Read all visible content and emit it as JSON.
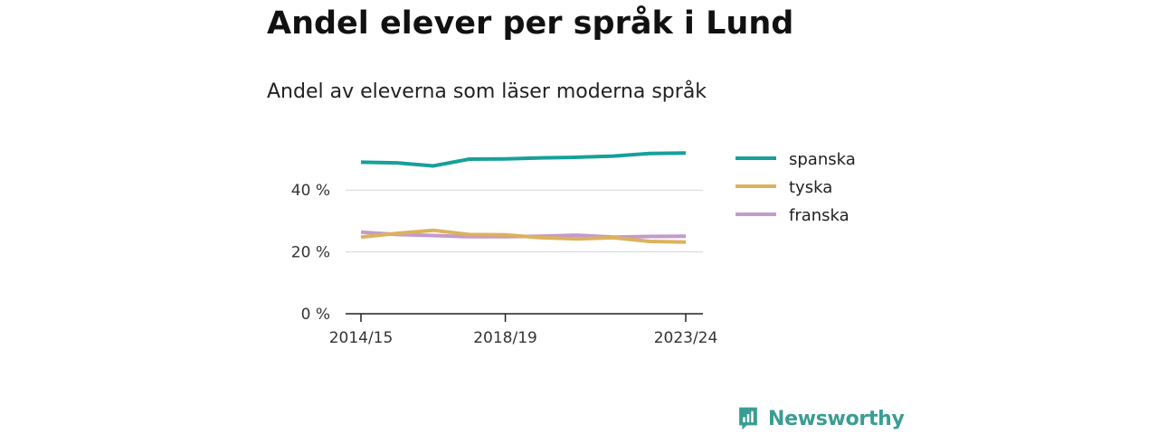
{
  "title": "Andel elever per språk i Lund",
  "subtitle": "Andel av eleverna som läser moderna språk",
  "brand": {
    "name": "Newsworthy",
    "color": "#3a9d93"
  },
  "chart_data": {
    "type": "line",
    "x": [
      "2014/15",
      "2015/16",
      "2016/17",
      "2017/18",
      "2018/19",
      "2019/20",
      "2020/21",
      "2021/22",
      "2022/23",
      "2023/24"
    ],
    "x_tick_labels": [
      "2014/15",
      "2018/19",
      "2023/24"
    ],
    "y_ticks": [
      0,
      20,
      40
    ],
    "y_tick_labels": [
      "0 %",
      "20 %",
      "40 %"
    ],
    "ylim": [
      0,
      55
    ],
    "grid": true,
    "legend_position": "right",
    "series": [
      {
        "name": "spanska",
        "color": "#17a09a",
        "values": [
          49.0,
          48.8,
          47.8,
          50.0,
          50.1,
          50.4,
          50.6,
          51.0,
          51.8,
          52.0
        ]
      },
      {
        "name": "tyska",
        "color": "#dcb25c",
        "values": [
          24.8,
          26.0,
          27.0,
          25.6,
          25.5,
          24.6,
          24.2,
          24.6,
          23.4,
          23.2
        ]
      },
      {
        "name": "franska",
        "color": "#c39bcd",
        "values": [
          26.4,
          25.6,
          25.3,
          24.9,
          24.9,
          25.1,
          25.4,
          24.8,
          25.0,
          25.1
        ]
      }
    ]
  }
}
